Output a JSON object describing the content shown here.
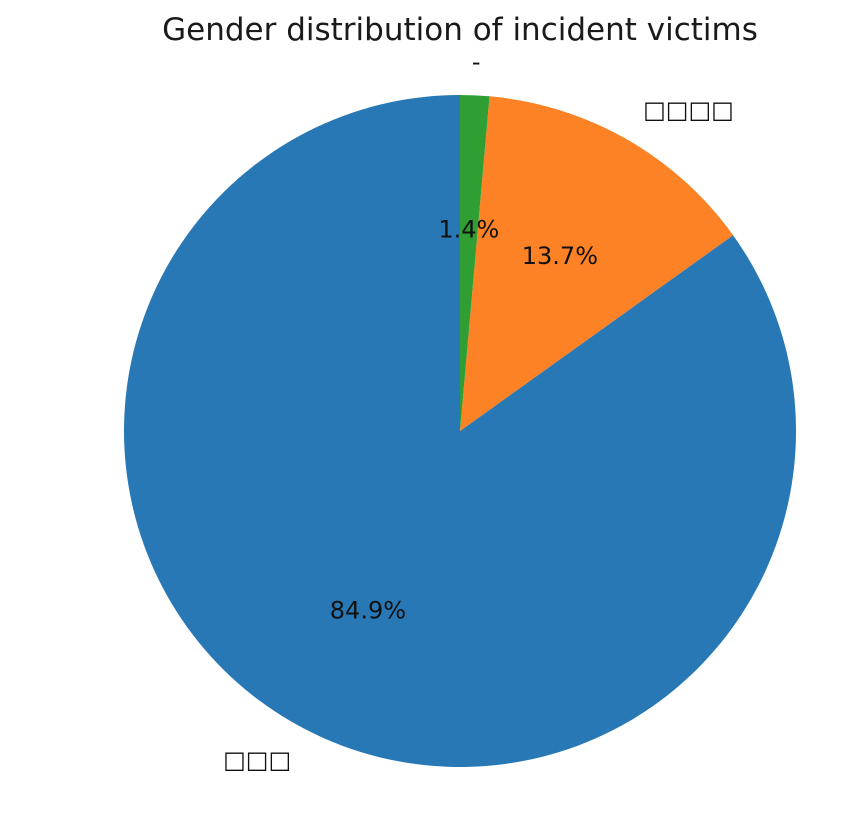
{
  "chart_data": {
    "type": "pie",
    "title": "Gender distribution of incident victims",
    "categories": [
      "□□□",
      "□□□□",
      "-"
    ],
    "values": [
      84.9,
      13.7,
      1.4
    ],
    "value_labels": [
      "84.9%",
      "13.7%",
      "1.4%"
    ],
    "colors": [
      "#2878b5",
      "#fd8125",
      "#2f9e33"
    ],
    "start_angle_deg": 90,
    "direction": "counterclockwise",
    "legend": "none"
  }
}
